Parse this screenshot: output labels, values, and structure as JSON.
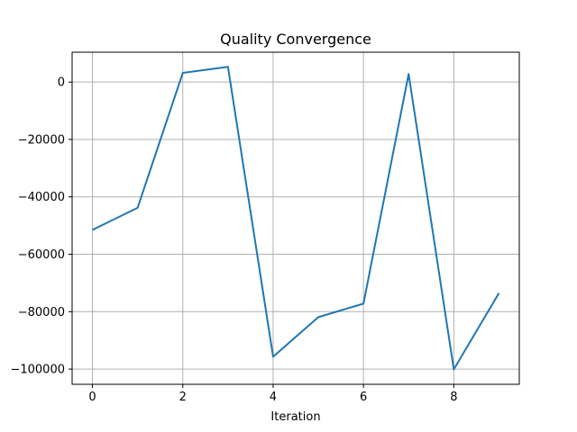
{
  "chart_data": {
    "type": "line",
    "title": "Quality Convergence",
    "xlabel": "Iteration",
    "ylabel": "",
    "x": [
      0,
      1,
      2,
      3,
      4,
      5,
      6,
      7,
      8,
      9
    ],
    "series": [
      {
        "name": "",
        "color": "#1f77b4",
        "values": [
          -51500,
          -43800,
          3200,
          5300,
          -95700,
          -81900,
          -77200,
          2800,
          -100100,
          -73500
        ]
      }
    ],
    "xlim": [
      -0.45,
      9.45
    ],
    "ylim": [
      -105300,
      10400
    ],
    "xticks": [
      0,
      2,
      4,
      6,
      8
    ],
    "xtick_labels": [
      "0",
      "2",
      "4",
      "6",
      "8"
    ],
    "yticks": [
      0,
      -20000,
      -40000,
      -60000,
      -80000,
      -100000
    ],
    "ytick_labels": [
      "0",
      "−20000",
      "−40000",
      "−60000",
      "−80000",
      "−100000"
    ],
    "grid": true,
    "grid_color": "#b0b0b0",
    "legend": "none"
  }
}
